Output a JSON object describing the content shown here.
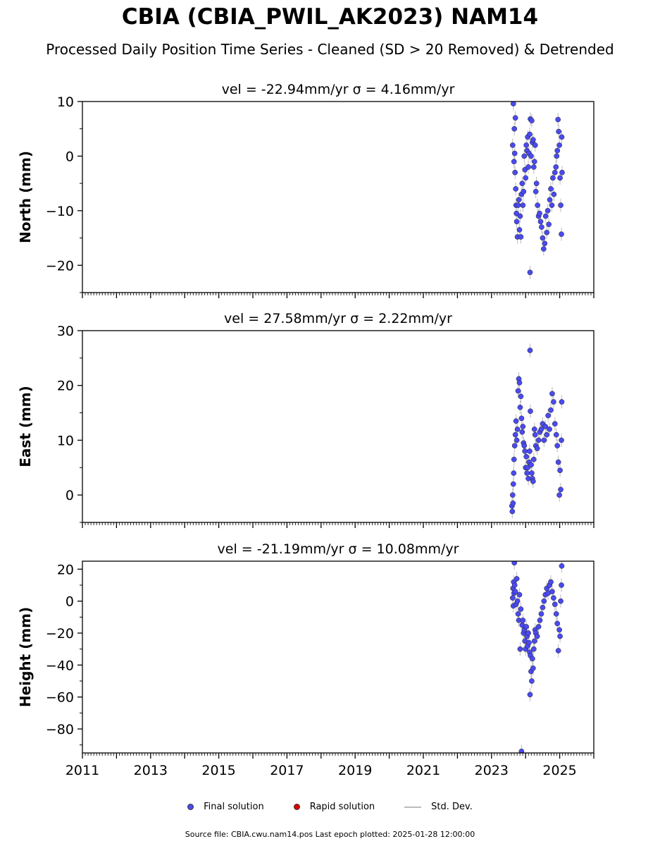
{
  "header": {
    "title": "CBIA (CBIA_PWIL_AK2023) NAM14",
    "subtitle": "Processed Daily Position Time Series - Cleaned (SD > 20 Removed) & Detrended"
  },
  "legend": {
    "items": [
      {
        "label": "Final solution",
        "color": "#4a4af0",
        "kind": "dot"
      },
      {
        "label": "Rapid solution",
        "color": "#dd0000",
        "kind": "dot"
      },
      {
        "label": "Std. Dev.",
        "color": "#bbbbbb",
        "kind": "line"
      }
    ]
  },
  "footer": {
    "text": "Source file: CBIA.cwu.nam14.pos  Last epoch plotted: 2025-01-28 12:00:00"
  },
  "chart_data": [
    {
      "type": "scatter",
      "title": "vel = -22.94mm/yr   σ = 4.16mm/yr",
      "ylabel": "North (mm)",
      "xlim": [
        2011.0,
        2026.0
      ],
      "ylim": [
        -25,
        10
      ],
      "yticks": [
        -20,
        -10,
        0,
        10
      ],
      "xticks": [
        2011,
        2013,
        2015,
        2017,
        2019,
        2021,
        2023,
        2025
      ],
      "series": [
        {
          "name": "Final solution",
          "color": "#4a4af0",
          "x": [
            2023.62,
            2023.64,
            2023.66,
            2023.67,
            2023.68,
            2023.69,
            2023.7,
            2023.71,
            2023.72,
            2023.73,
            2023.74,
            2023.76,
            2023.78,
            2023.8,
            2023.82,
            2023.84,
            2023.86,
            2023.88,
            2023.9,
            2023.92,
            2023.94,
            2023.96,
            2023.98,
            2024.0,
            2024.02,
            2024.04,
            2024.06,
            2024.08,
            2024.1,
            2024.12,
            2024.13,
            2024.14,
            2024.16,
            2024.18,
            2024.2,
            2024.22,
            2024.24,
            2024.26,
            2024.28,
            2024.3,
            2024.32,
            2024.35,
            2024.38,
            2024.41,
            2024.44,
            2024.47,
            2024.5,
            2024.53,
            2024.56,
            2024.59,
            2024.62,
            2024.65,
            2024.68,
            2024.71,
            2024.74,
            2024.77,
            2024.8,
            2024.83,
            2024.86,
            2024.89,
            2024.91,
            2024.93,
            2024.95,
            2024.97,
            2024.99,
            2025.01,
            2025.03,
            2025.05,
            2025.06,
            2025.07
          ],
          "y": [
            2.0,
            9.6,
            -1.0,
            5.0,
            0.5,
            -3.0,
            7.0,
            -6.0,
            -9.0,
            -10.5,
            -12.0,
            -14.8,
            -9.0,
            -8.0,
            -13.5,
            -11.0,
            -14.8,
            -7.0,
            -5.0,
            -9.0,
            -6.5,
            0.0,
            -2.5,
            -4.0,
            2.0,
            1.0,
            3.5,
            -2.0,
            0.5,
            4.0,
            -21.3,
            6.8,
            0.0,
            6.5,
            2.5,
            3.0,
            -2.0,
            -1.0,
            2.0,
            -6.5,
            -5.0,
            -9.0,
            -11.0,
            -10.5,
            -12.0,
            -13.0,
            -15.0,
            -17.0,
            -16.0,
            -11.0,
            -14.0,
            -10.0,
            -12.5,
            -8.0,
            -6.0,
            -9.0,
            -4.0,
            -7.0,
            -3.0,
            -2.0,
            0.0,
            1.0,
            6.7,
            4.5,
            2.0,
            -4.0,
            -9.0,
            -14.3,
            3.5,
            -3.0
          ]
        }
      ]
    },
    {
      "type": "scatter",
      "title": "vel = 27.58mm/yr   σ = 2.22mm/yr",
      "ylabel": "East (mm)",
      "xlim": [
        2011.0,
        2026.0
      ],
      "ylim": [
        -5,
        30
      ],
      "yticks": [
        0,
        10,
        20,
        30
      ],
      "xticks": [
        2011,
        2013,
        2015,
        2017,
        2019,
        2021,
        2023,
        2025
      ],
      "series": [
        {
          "name": "Final solution",
          "color": "#4a4af0",
          "x": [
            2023.6,
            2023.61,
            2023.62,
            2023.63,
            2023.64,
            2023.65,
            2023.66,
            2023.68,
            2023.7,
            2023.72,
            2023.74,
            2023.76,
            2023.78,
            2023.8,
            2023.82,
            2023.84,
            2023.86,
            2023.88,
            2023.9,
            2023.92,
            2023.94,
            2023.96,
            2023.98,
            2024.0,
            2024.02,
            2024.04,
            2024.06,
            2024.08,
            2024.1,
            2024.12,
            2024.13,
            2024.14,
            2024.16,
            2024.18,
            2024.2,
            2024.22,
            2024.24,
            2024.26,
            2024.28,
            2024.3,
            2024.34,
            2024.38,
            2024.42,
            2024.46,
            2024.5,
            2024.54,
            2024.58,
            2024.62,
            2024.66,
            2024.7,
            2024.74,
            2024.78,
            2024.82,
            2024.86,
            2024.9,
            2024.93,
            2024.96,
            2024.99,
            2025.01,
            2025.03,
            2025.05,
            2025.06
          ],
          "y": [
            -2.0,
            -3.0,
            0.0,
            -1.5,
            2.0,
            4.0,
            6.5,
            9.0,
            11.0,
            13.5,
            10.0,
            12.0,
            19.0,
            21.2,
            20.5,
            16.0,
            18.0,
            14.0,
            11.5,
            12.5,
            9.5,
            9.0,
            8.0,
            5.0,
            7.0,
            4.0,
            5.0,
            3.0,
            6.0,
            8.0,
            26.4,
            15.3,
            5.5,
            4.0,
            3.0,
            2.5,
            6.5,
            12.0,
            11.0,
            9.0,
            8.5,
            10.0,
            11.5,
            12.0,
            13.0,
            10.0,
            12.5,
            11.0,
            14.5,
            12.0,
            15.5,
            18.5,
            17.0,
            13.0,
            11.0,
            9.0,
            6.0,
            0.0,
            4.5,
            1.0,
            10.0,
            17.0
          ]
        }
      ]
    },
    {
      "type": "scatter",
      "title": "vel = -21.19mm/yr   σ = 10.08mm/yr",
      "ylabel": "Height (mm)",
      "xlim": [
        2011.0,
        2026.0
      ],
      "ylim": [
        -95,
        25
      ],
      "yticks": [
        -80,
        -60,
        -40,
        -20,
        0,
        20
      ],
      "xticks": [
        2011,
        2013,
        2015,
        2017,
        2019,
        2021,
        2023,
        2025
      ],
      "series": [
        {
          "name": "Final solution",
          "color": "#4a4af0",
          "x": [
            2023.62,
            2023.63,
            2023.64,
            2023.65,
            2023.66,
            2023.67,
            2023.68,
            2023.7,
            2023.72,
            2023.74,
            2023.76,
            2023.78,
            2023.8,
            2023.82,
            2023.84,
            2023.86,
            2023.88,
            2023.9,
            2023.92,
            2023.94,
            2023.96,
            2023.98,
            2024.0,
            2024.02,
            2024.04,
            2024.06,
            2024.08,
            2024.1,
            2024.12,
            2024.13,
            2024.14,
            2024.16,
            2024.18,
            2024.2,
            2024.22,
            2024.24,
            2024.26,
            2024.28,
            2024.3,
            2024.34,
            2024.38,
            2024.42,
            2024.46,
            2024.5,
            2024.54,
            2024.58,
            2024.62,
            2024.66,
            2024.7,
            2024.74,
            2024.78,
            2024.82,
            2024.86,
            2024.9,
            2024.93,
            2024.96,
            2024.99,
            2025.01,
            2025.03,
            2025.05,
            2025.06
          ],
          "y": [
            2.0,
            8.0,
            -3.0,
            12.0,
            5.0,
            24.0,
            10.0,
            6.0,
            -2.0,
            14.0,
            0.0,
            -8.0,
            -12.0,
            4.0,
            -30.0,
            -5.0,
            -94.0,
            -15.0,
            -12.0,
            -20.0,
            -18.0,
            -25.0,
            -30.0,
            -16.0,
            -22.0,
            -28.0,
            -20.0,
            -26.0,
            -32.0,
            -58.5,
            -34.0,
            -44.0,
            -50.0,
            -36.0,
            -42.0,
            -30.0,
            -25.0,
            -18.0,
            -20.0,
            -22.0,
            -16.0,
            -12.0,
            -8.0,
            -4.0,
            0.0,
            4.0,
            8.0,
            5.0,
            10.0,
            12.0,
            6.0,
            2.0,
            -2.0,
            -8.0,
            -14.0,
            -31.0,
            -18.0,
            -22.0,
            0.0,
            10.0,
            22.0
          ]
        }
      ]
    }
  ]
}
